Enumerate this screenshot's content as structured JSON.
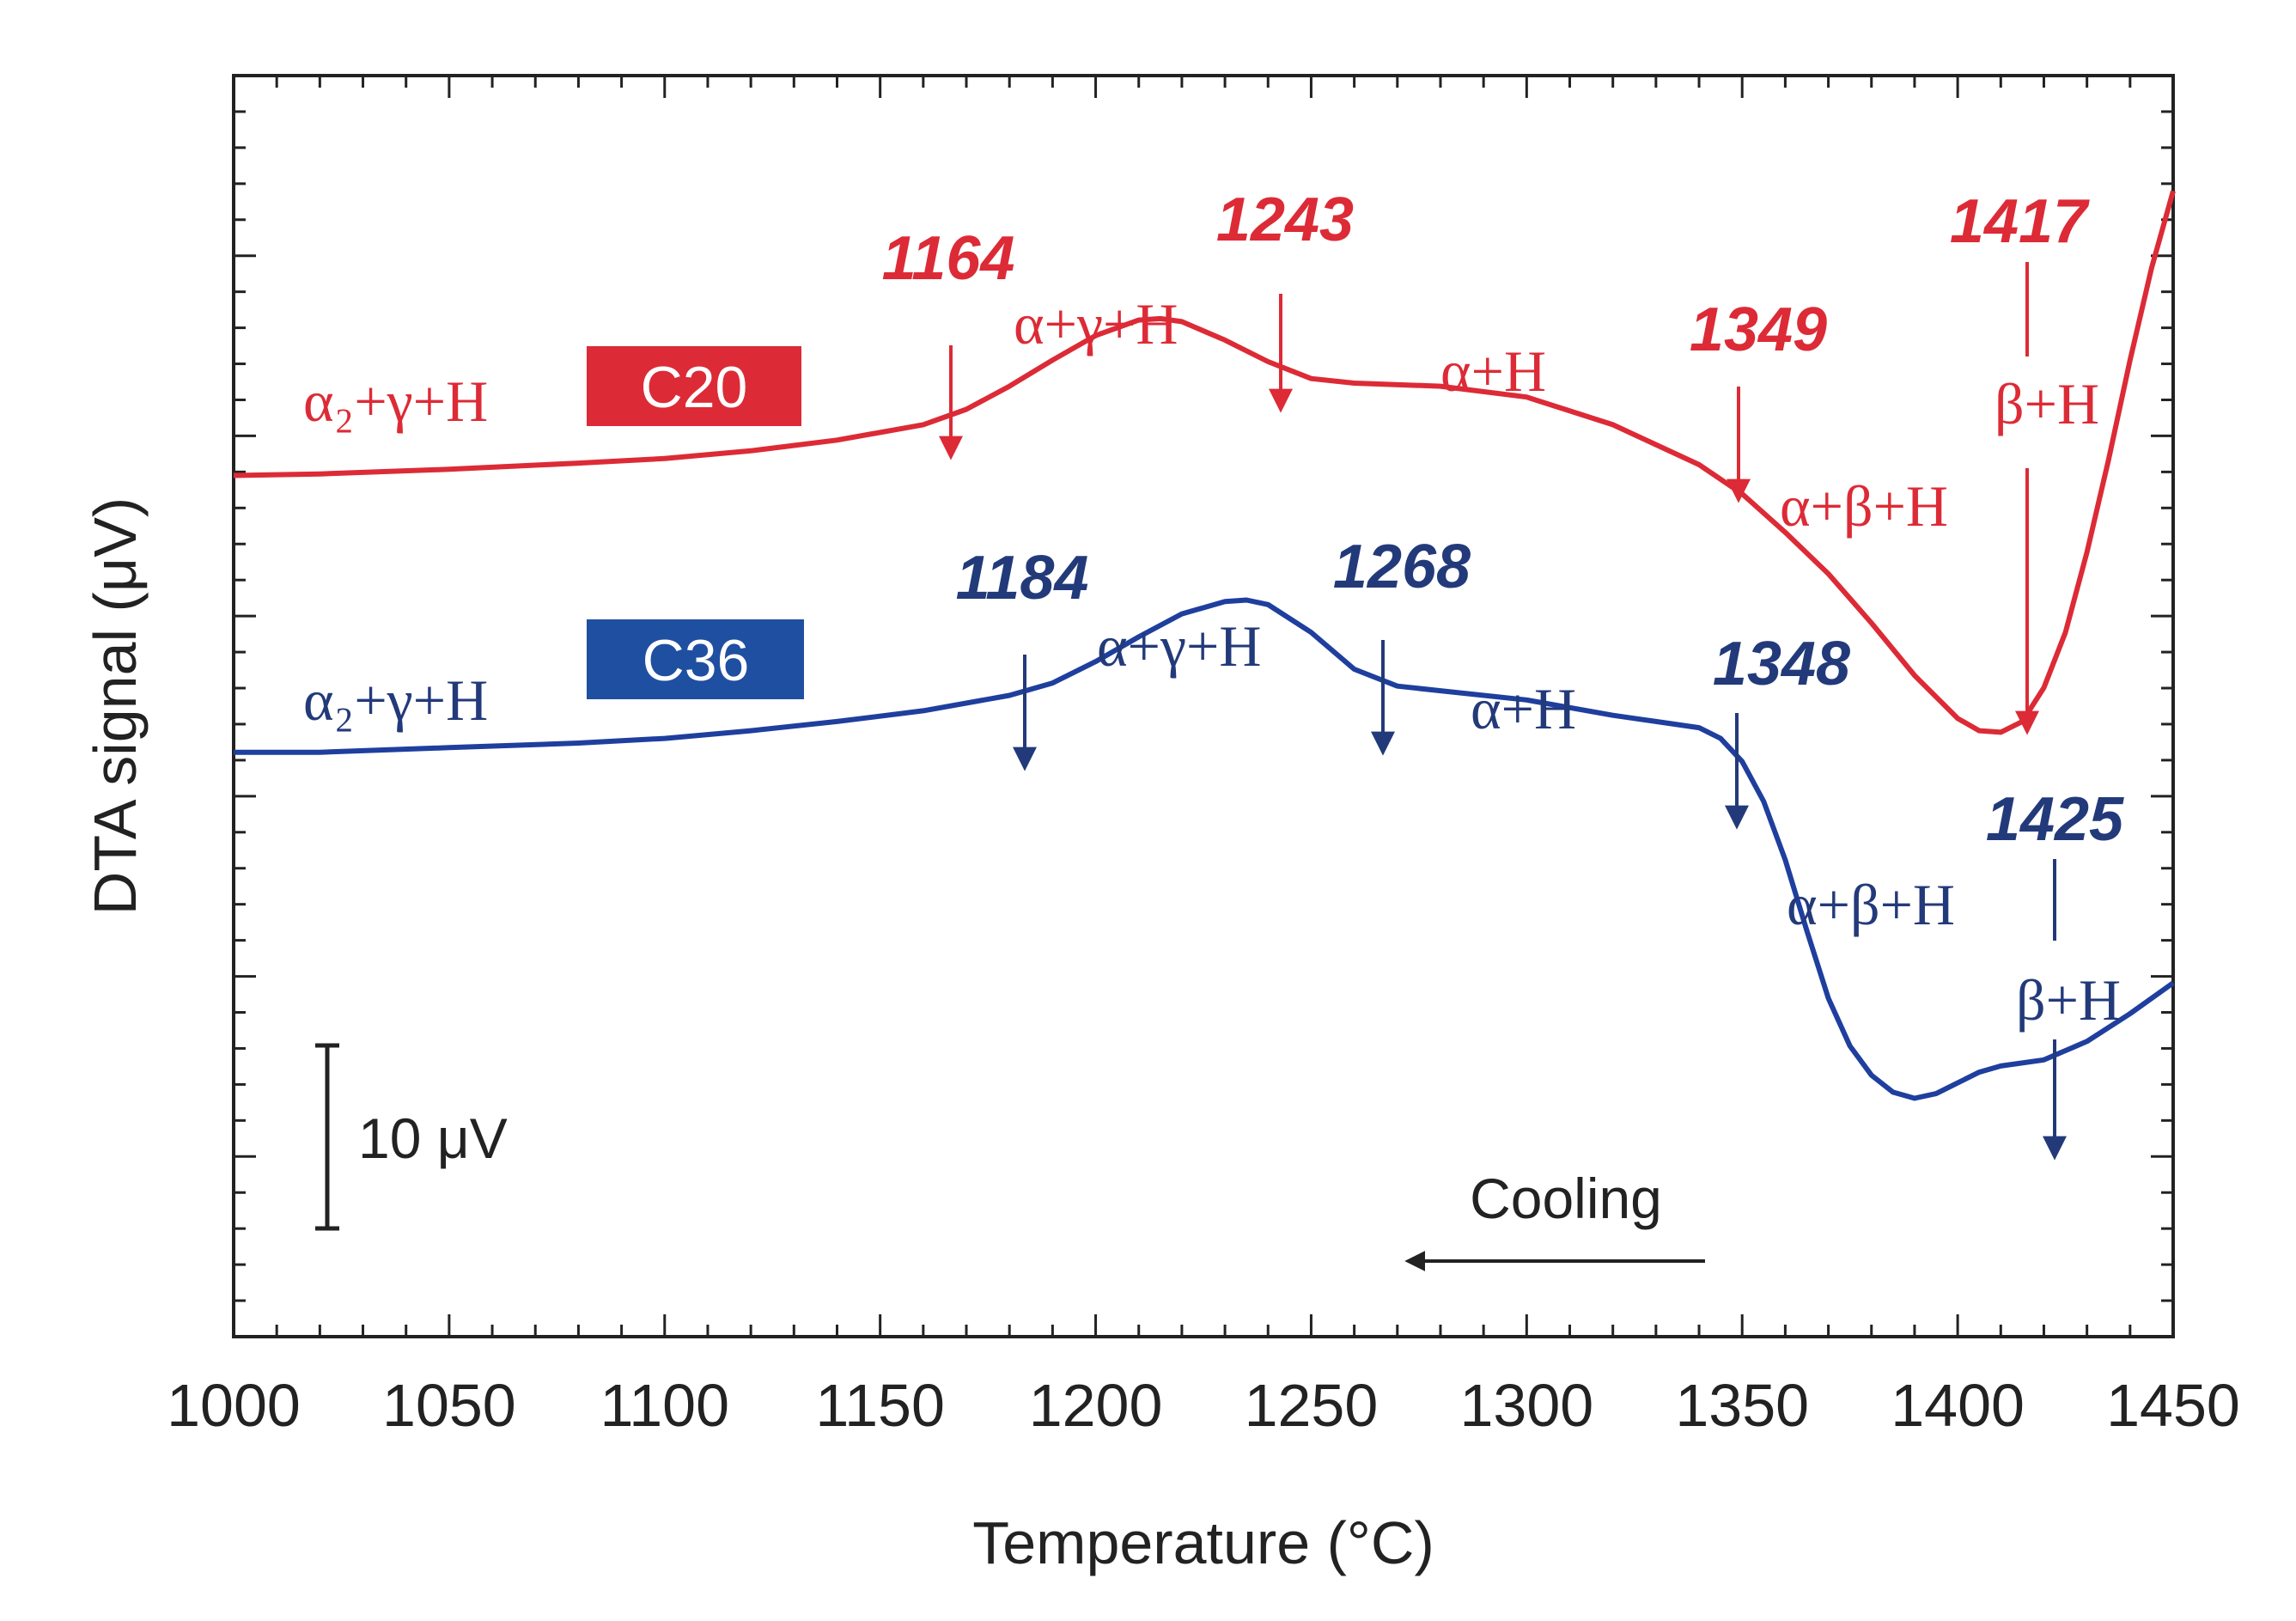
{
  "chart_data": {
    "type": "line",
    "xlabel": "Temperature (°C)",
    "ylabel": "DTA signal (μV)",
    "xlim": [
      1000,
      1450
    ],
    "ylim": [
      0,
      82
    ],
    "x_ticks": [
      1000,
      1050,
      1100,
      1150,
      1200,
      1250,
      1300,
      1350,
      1400,
      1450
    ],
    "colors": {
      "C20": "#dc2b36",
      "C36": "#1f3f9e",
      "C36_text": "#233a7a",
      "axis": "#222222"
    },
    "series": [
      {
        "name": "C20",
        "x": [
          1000,
          1020,
          1050,
          1080,
          1100,
          1120,
          1140,
          1160,
          1170,
          1180,
          1190,
          1200,
          1210,
          1215,
          1220,
          1230,
          1240,
          1250,
          1260,
          1280,
          1300,
          1320,
          1340,
          1350,
          1360,
          1370,
          1380,
          1390,
          1400,
          1405,
          1410,
          1415,
          1420,
          1425,
          1430,
          1435,
          1440,
          1445,
          1450
        ],
        "values": [
          56,
          56.1,
          56.4,
          56.8,
          57.1,
          57.6,
          58.3,
          59.3,
          60.3,
          61.8,
          63.5,
          65.1,
          66.1,
          66.2,
          66.0,
          64.8,
          63.4,
          62.3,
          62.0,
          61.8,
          61.1,
          59.3,
          56.7,
          54.8,
          52.3,
          49.6,
          46.4,
          43.0,
          40.2,
          39.4,
          39.3,
          40.0,
          42.2,
          45.8,
          51.0,
          57.0,
          63.5,
          69.5,
          74.5
        ]
      },
      {
        "name": "C36",
        "x": [
          1000,
          1020,
          1050,
          1080,
          1100,
          1120,
          1140,
          1160,
          1180,
          1190,
          1200,
          1210,
          1220,
          1230,
          1235,
          1240,
          1250,
          1260,
          1270,
          1280,
          1300,
          1320,
          1330,
          1340,
          1345,
          1350,
          1355,
          1360,
          1365,
          1370,
          1375,
          1380,
          1385,
          1390,
          1395,
          1400,
          1405,
          1410,
          1420,
          1430,
          1440,
          1450
        ],
        "values": [
          38.0,
          38.0,
          38.3,
          38.6,
          38.9,
          39.4,
          40.0,
          40.7,
          41.7,
          42.5,
          43.9,
          45.5,
          47.0,
          47.8,
          47.9,
          47.6,
          45.8,
          43.4,
          42.3,
          42.0,
          41.4,
          40.4,
          40.0,
          39.6,
          38.9,
          37.4,
          34.8,
          31.0,
          26.4,
          22.0,
          18.9,
          17.0,
          15.9,
          15.5,
          15.8,
          16.5,
          17.2,
          17.6,
          18.0,
          19.2,
          21.0,
          23.0
        ]
      }
    ],
    "annotations": [
      {
        "series": "C20",
        "text": "1164",
        "x": 1164,
        "arrow": "short"
      },
      {
        "series": "C20",
        "text": "1243",
        "x": 1243,
        "arrow": "short"
      },
      {
        "series": "C20",
        "text": "1349",
        "x": 1349,
        "arrow": "short"
      },
      {
        "series": "C20",
        "text": "1417",
        "x": 1417,
        "arrow": "long"
      },
      {
        "series": "C36",
        "text": "1184",
        "x": 1184,
        "arrow": "short"
      },
      {
        "series": "C36",
        "text": "1268",
        "x": 1268,
        "arrow": "short"
      },
      {
        "series": "C36",
        "text": "1348",
        "x": 1348,
        "arrow": "short"
      },
      {
        "series": "C36",
        "text": "1425",
        "x": 1425,
        "arrow": "long"
      }
    ],
    "phase_labels": {
      "c20": [
        "α₂+γ+H",
        "α+γ+H",
        "α+H",
        "α+β+H",
        "β+H"
      ],
      "c36": [
        "α₂+γ+H",
        "α+γ+H",
        "α+H",
        "α+β+H",
        "β+H"
      ]
    },
    "series_badges": [
      "C20",
      "C36"
    ],
    "scale_bar": {
      "label": "10 μV",
      "value": 10
    },
    "direction_label": "Cooling"
  }
}
